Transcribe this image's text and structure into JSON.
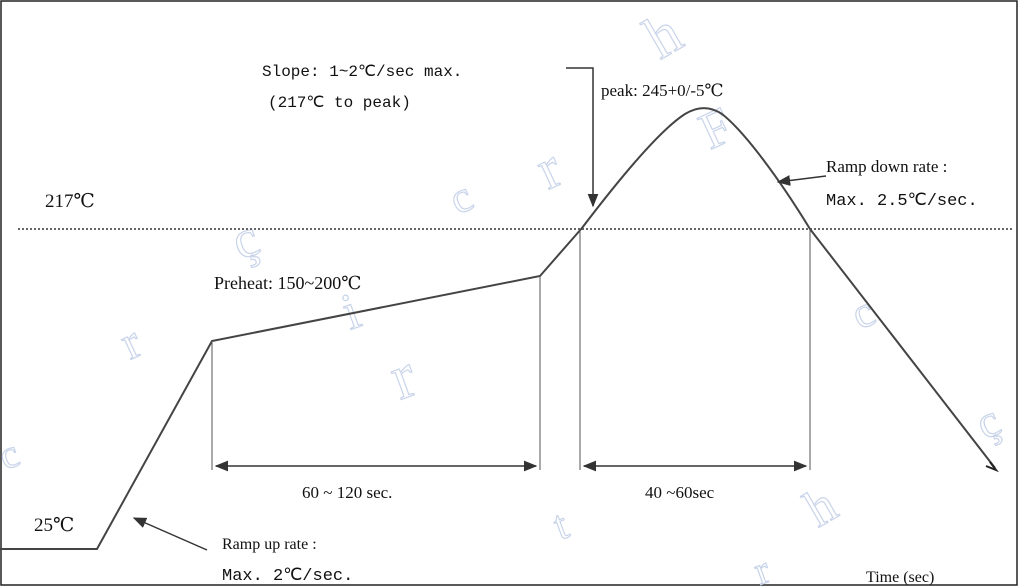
{
  "labels": {
    "temp_217": "217℃",
    "temp_25": "25℃",
    "slope_line1": "Slope: 1~2℃/sec max.",
    "slope_line2": "(217℃ to peak)",
    "peak": "peak: 245+0/-5℃",
    "ramp_down_line1": "Ramp down rate :",
    "ramp_down_line2": "Max. 2.5℃/sec.",
    "preheat": "Preheat: 150~200℃",
    "preheat_duration": "60 ~ 120 sec.",
    "reflow_duration": "40 ~60sec",
    "ramp_up_line1": "Ramp up rate :",
    "ramp_up_line2": "Max. 2℃/sec.",
    "time_axis": "Time (sec)"
  },
  "watermark": {
    "glyphs": [
      "r",
      "h",
      "r",
      "ç",
      "c",
      "r",
      "i",
      "F",
      "t",
      "c",
      "ç",
      "h",
      "r",
      "c"
    ]
  },
  "colors": {
    "curve": "#444444",
    "line": "#555555",
    "dotted": "#666666",
    "watermark": "#c9d4ea"
  }
}
